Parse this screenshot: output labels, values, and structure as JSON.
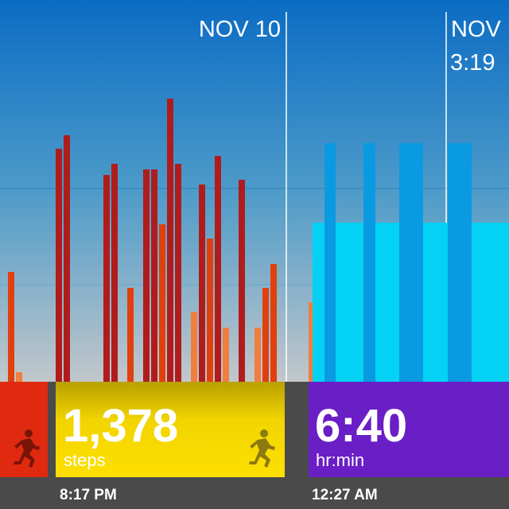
{
  "header": {
    "date_1": "NOV 10",
    "date_2": "NOV",
    "time_2": "3:19"
  },
  "tiles": {
    "steps": {
      "value": "1,378",
      "unit": "steps",
      "time": "8:17 PM"
    },
    "sleep": {
      "value": "6:40",
      "unit": "hr:min",
      "time": "12:27 AM"
    }
  }
}
